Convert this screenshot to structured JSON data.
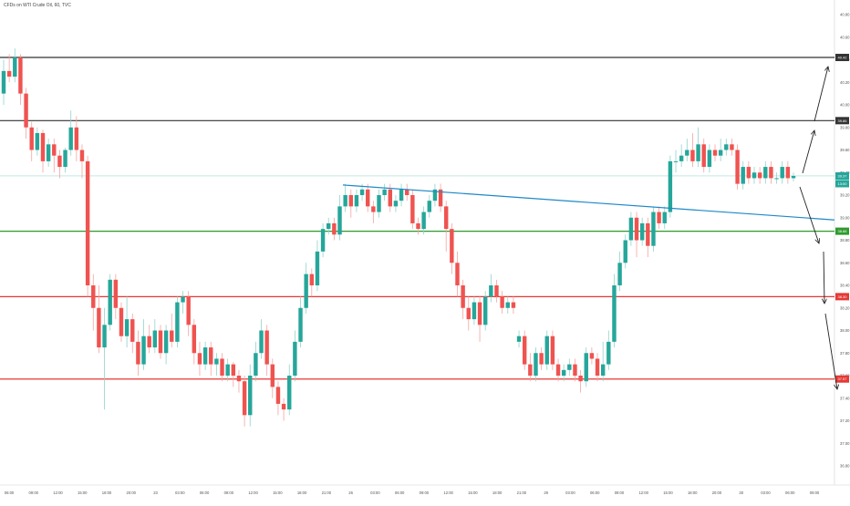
{
  "header": {
    "title": "CFDs on WTI Crude Oil, 60, TVC"
  },
  "chart_data": {
    "type": "candlestick",
    "title": "CFDs on WTI Crude Oil, 60, TVC",
    "ylim": [
      36.8,
      40.8
    ],
    "y_ticks": [
      "40.80",
      "40.60",
      "40.40",
      "40.20",
      "40.00",
      "39.80",
      "39.60",
      "39.40",
      "39.20",
      "39.00",
      "38.80",
      "38.60",
      "38.40",
      "38.20",
      "38.00",
      "37.80",
      "37.60",
      "37.40",
      "37.20",
      "37.00",
      "36.80"
    ],
    "x_ticks": [
      "06:00",
      "09:00",
      "12:00",
      "15:00",
      "18:00",
      "20:00",
      "23",
      "03:00",
      "06:00",
      "09:00",
      "12:00",
      "15:00",
      "18:00",
      "21:00",
      "26",
      "03:00",
      "06:00",
      "09:00",
      "12:00",
      "15:00",
      "18:00",
      "21:00",
      "29",
      "03:00",
      "06:00",
      "09:00",
      "12:00",
      "15:00",
      "18:00",
      "20:00",
      "30",
      "03:00",
      "06:00",
      "09:00"
    ],
    "price_levels": [
      {
        "value": 40.42,
        "label": "40.42",
        "color": "#333333"
      },
      {
        "value": 39.86,
        "label": "39.86",
        "color": "#333333"
      },
      {
        "value": 38.88,
        "label": "38.88",
        "color": "#2e9a2e"
      },
      {
        "value": 38.3,
        "label": "38.30",
        "color": "#e53935"
      },
      {
        "value": 37.57,
        "label": "37.57",
        "color": "#e53935"
      }
    ],
    "current_price": {
      "value": 39.37,
      "label": "39.37",
      "countdown": "13:00",
      "color": "#26a69a"
    },
    "trend_line": {
      "start": 39.29,
      "end": 38.98,
      "color": "#1e88c8"
    },
    "candles": [
      [
        40.1,
        40.3,
        40.4,
        40.0
      ],
      [
        40.3,
        40.25,
        40.45,
        40.2
      ],
      [
        40.25,
        40.42,
        40.5,
        40.2
      ],
      [
        40.42,
        40.1,
        40.45,
        40.0
      ],
      [
        40.1,
        39.8,
        40.15,
        39.7
      ],
      [
        39.8,
        39.6,
        39.85,
        39.5
      ],
      [
        39.6,
        39.75,
        39.8,
        39.55
      ],
      [
        39.75,
        39.5,
        39.78,
        39.4
      ],
      [
        39.5,
        39.65,
        39.7,
        39.45
      ],
      [
        39.65,
        39.55,
        39.7,
        39.4
      ],
      [
        39.55,
        39.45,
        39.6,
        39.35
      ],
      [
        39.45,
        39.6,
        39.62,
        39.4
      ],
      [
        39.6,
        39.8,
        39.95,
        39.55
      ],
      [
        39.8,
        39.6,
        39.9,
        39.5
      ],
      [
        39.6,
        39.5,
        39.65,
        39.35
      ],
      [
        39.5,
        38.4,
        39.55,
        38.3
      ],
      [
        38.4,
        38.2,
        38.5,
        38.0
      ],
      [
        38.2,
        37.85,
        38.4,
        37.8
      ],
      [
        37.85,
        38.05,
        38.2,
        37.3
      ],
      [
        38.05,
        38.45,
        38.5,
        38.0
      ],
      [
        38.45,
        38.2,
        38.5,
        38.1
      ],
      [
        38.2,
        37.95,
        38.25,
        37.9
      ],
      [
        37.95,
        38.1,
        38.3,
        37.85
      ],
      [
        38.1,
        37.9,
        38.15,
        37.8
      ],
      [
        37.9,
        37.7,
        38.0,
        37.6
      ],
      [
        37.7,
        37.95,
        38.1,
        37.65
      ],
      [
        37.95,
        37.85,
        38.05,
        37.8
      ],
      [
        37.85,
        38.0,
        38.1,
        37.8
      ],
      [
        38.0,
        37.8,
        38.05,
        37.75
      ],
      [
        37.8,
        38.0,
        38.05,
        37.7
      ],
      [
        38.0,
        37.9,
        38.15,
        37.85
      ],
      [
        37.9,
        38.25,
        38.3,
        37.85
      ],
      [
        38.25,
        38.3,
        38.35,
        38.15
      ],
      [
        38.3,
        38.05,
        38.35,
        37.95
      ],
      [
        38.05,
        37.8,
        38.1,
        37.7
      ],
      [
        37.8,
        37.7,
        37.9,
        37.6
      ],
      [
        37.7,
        37.85,
        37.9,
        37.65
      ],
      [
        37.85,
        37.7,
        37.9,
        37.6
      ],
      [
        37.7,
        37.75,
        37.8,
        37.6
      ],
      [
        37.75,
        37.6,
        37.8,
        37.55
      ],
      [
        37.6,
        37.7,
        37.75,
        37.55
      ],
      [
        37.7,
        37.6,
        37.72,
        37.5
      ],
      [
        37.6,
        37.55,
        37.65,
        37.45
      ],
      [
        37.55,
        37.25,
        37.6,
        37.15
      ],
      [
        37.25,
        37.6,
        37.7,
        37.15
      ],
      [
        37.6,
        37.8,
        37.9,
        37.55
      ],
      [
        37.8,
        38.0,
        38.1,
        37.75
      ],
      [
        38.0,
        37.7,
        38.05,
        37.6
      ],
      [
        37.7,
        37.5,
        37.75,
        37.4
      ],
      [
        37.5,
        37.35,
        37.55,
        37.25
      ],
      [
        37.35,
        37.3,
        37.4,
        37.2
      ],
      [
        37.3,
        37.6,
        37.7,
        37.25
      ],
      [
        37.6,
        37.9,
        38.0,
        37.55
      ],
      [
        37.9,
        38.2,
        38.3,
        37.85
      ],
      [
        38.2,
        38.5,
        38.6,
        38.15
      ],
      [
        38.5,
        38.4,
        38.55,
        38.3
      ],
      [
        38.4,
        38.7,
        38.8,
        38.35
      ],
      [
        38.7,
        38.9,
        38.95,
        38.65
      ],
      [
        38.9,
        38.95,
        39.0,
        38.85
      ],
      [
        38.95,
        38.85,
        39.0,
        38.8
      ],
      [
        38.85,
        39.1,
        39.2,
        38.8
      ],
      [
        39.1,
        39.2,
        39.3,
        39.05
      ],
      [
        39.2,
        39.1,
        39.25,
        39.0
      ],
      [
        39.1,
        39.2,
        39.25,
        39.05
      ],
      [
        39.2,
        39.25,
        39.3,
        39.15
      ],
      [
        39.25,
        39.1,
        39.3,
        39.05
      ],
      [
        39.1,
        39.05,
        39.15,
        38.95
      ],
      [
        39.05,
        39.2,
        39.25,
        39.0
      ],
      [
        39.2,
        39.25,
        39.3,
        39.15
      ],
      [
        39.25,
        39.1,
        39.3,
        39.05
      ],
      [
        39.1,
        39.15,
        39.2,
        39.05
      ],
      [
        39.15,
        39.25,
        39.3,
        39.1
      ],
      [
        39.25,
        39.2,
        39.3,
        39.15
      ],
      [
        39.2,
        38.95,
        39.25,
        38.9
      ],
      [
        38.95,
        38.9,
        39.0,
        38.85
      ],
      [
        38.9,
        39.05,
        39.1,
        38.85
      ],
      [
        39.05,
        39.15,
        39.2,
        39.0
      ],
      [
        39.15,
        39.25,
        39.3,
        39.1
      ],
      [
        39.25,
        39.1,
        39.3,
        39.05
      ],
      [
        39.1,
        38.9,
        39.15,
        38.7
      ],
      [
        38.9,
        38.6,
        38.95,
        38.5
      ],
      [
        38.6,
        38.4,
        38.7,
        38.3
      ],
      [
        38.4,
        38.2,
        38.45,
        38.1
      ],
      [
        38.2,
        38.1,
        38.3,
        38.0
      ],
      [
        38.1,
        38.25,
        38.3,
        38.05
      ],
      [
        38.25,
        38.05,
        38.3,
        37.9
      ],
      [
        38.05,
        38.3,
        38.35,
        38.0
      ],
      [
        38.3,
        38.4,
        38.5,
        38.25
      ],
      [
        38.4,
        38.3,
        38.45,
        38.25
      ],
      [
        38.3,
        38.2,
        38.35,
        38.15
      ],
      [
        38.2,
        38.25,
        38.3,
        38.15
      ],
      [
        38.25,
        38.2,
        38.3,
        38.15
      ],
      [
        37.9,
        37.95,
        38.0,
        37.85
      ],
      [
        37.95,
        37.7,
        38.0,
        37.65
      ],
      [
        37.7,
        37.6,
        37.8,
        37.55
      ],
      [
        37.6,
        37.8,
        37.85,
        37.55
      ],
      [
        37.8,
        37.7,
        37.85,
        37.65
      ],
      [
        37.7,
        37.95,
        38.0,
        37.65
      ],
      [
        37.95,
        37.7,
        38.0,
        37.65
      ],
      [
        37.7,
        37.6,
        37.75,
        37.55
      ],
      [
        37.6,
        37.65,
        37.7,
        37.55
      ],
      [
        37.65,
        37.7,
        37.75,
        37.6
      ],
      [
        37.7,
        37.6,
        37.75,
        37.55
      ],
      [
        37.6,
        37.55,
        37.65,
        37.45
      ],
      [
        37.55,
        37.8,
        37.85,
        37.5
      ],
      [
        37.8,
        37.75,
        37.85,
        37.7
      ],
      [
        37.75,
        37.6,
        37.8,
        37.55
      ],
      [
        37.6,
        37.7,
        37.9,
        37.55
      ],
      [
        37.7,
        37.9,
        38.0,
        37.65
      ],
      [
        37.9,
        38.4,
        38.5,
        37.85
      ],
      [
        38.4,
        38.6,
        38.7,
        38.35
      ],
      [
        38.6,
        38.8,
        38.85,
        38.55
      ],
      [
        38.8,
        39.0,
        39.05,
        38.75
      ],
      [
        39.0,
        38.8,
        39.05,
        38.65
      ],
      [
        38.8,
        38.95,
        39.0,
        38.75
      ],
      [
        38.95,
        38.75,
        39.0,
        38.65
      ],
      [
        38.75,
        39.05,
        39.1,
        38.7
      ],
      [
        39.05,
        38.95,
        39.1,
        38.9
      ],
      [
        38.95,
        39.05,
        39.1,
        38.9
      ],
      [
        39.05,
        39.5,
        39.55,
        39.0
      ],
      [
        39.5,
        39.5,
        39.6,
        39.4
      ],
      [
        39.5,
        39.55,
        39.65,
        39.45
      ],
      [
        39.55,
        39.6,
        39.7,
        39.5
      ],
      [
        39.6,
        39.5,
        39.75,
        39.45
      ],
      [
        39.5,
        39.65,
        39.8,
        39.45
      ],
      [
        39.65,
        39.45,
        39.7,
        39.4
      ],
      [
        39.45,
        39.6,
        39.65,
        39.4
      ],
      [
        39.6,
        39.55,
        39.65,
        39.5
      ],
      [
        39.55,
        39.6,
        39.7,
        39.5
      ],
      [
        39.6,
        39.65,
        39.7,
        39.55
      ],
      [
        39.65,
        39.6,
        39.7,
        39.55
      ],
      [
        39.6,
        39.3,
        39.65,
        39.25
      ],
      [
        39.3,
        39.45,
        39.5,
        39.25
      ],
      [
        39.45,
        39.35,
        39.5,
        39.3
      ],
      [
        39.35,
        39.4,
        39.45,
        39.3
      ],
      [
        39.4,
        39.35,
        39.45,
        39.3
      ],
      [
        39.35,
        39.45,
        39.5,
        39.3
      ],
      [
        39.45,
        39.35,
        39.5,
        39.3
      ],
      [
        39.35,
        39.35,
        39.4,
        39.3
      ],
      [
        39.35,
        39.45,
        39.5,
        39.3
      ],
      [
        39.45,
        39.35,
        39.5,
        39.3
      ],
      [
        39.35,
        39.37,
        39.4,
        39.32
      ]
    ]
  }
}
